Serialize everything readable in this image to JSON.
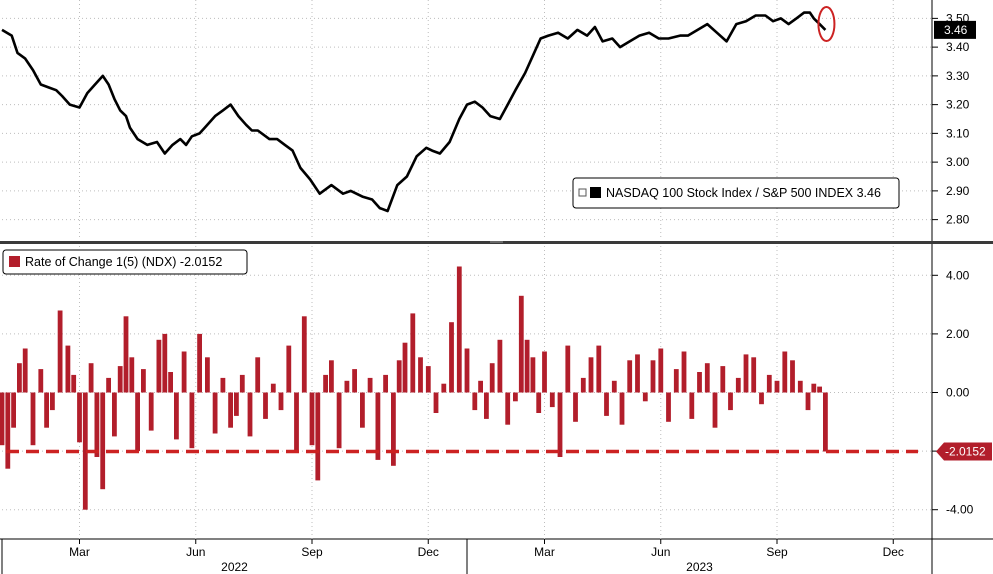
{
  "chart_data": [
    {
      "type": "line",
      "legend": "NASDAQ 100 Stock Index / S&P 500 INDEX 3.46",
      "last_value_label": "3.46",
      "ylim": [
        2.75,
        3.55
      ],
      "yticks": [
        2.8,
        2.9,
        3.0,
        3.1,
        3.2,
        3.3,
        3.4,
        3.5
      ],
      "ytick_labels": [
        "2.80",
        "2.90",
        "3.00",
        "3.10",
        "3.20",
        "3.30",
        "3.40",
        "3.50"
      ],
      "x_unit": "months since Jan 2022",
      "series": [
        {
          "color": "#000000",
          "x": [
            0.0,
            0.25,
            0.4,
            0.6,
            0.8,
            1.0,
            1.2,
            1.4,
            1.55,
            1.75,
            2.0,
            2.2,
            2.4,
            2.6,
            2.75,
            2.9,
            3.05,
            3.2,
            3.3,
            3.5,
            3.75,
            4.0,
            4.2,
            4.4,
            4.6,
            4.75,
            4.9,
            5.1,
            5.3,
            5.5,
            5.7,
            5.9,
            6.1,
            6.3,
            6.45,
            6.6,
            6.9,
            7.1,
            7.3,
            7.5,
            7.7,
            7.95,
            8.2,
            8.5,
            8.8,
            9.0,
            9.3,
            9.55,
            9.75,
            9.95,
            10.2,
            10.45,
            10.7,
            10.95,
            11.1,
            11.3,
            11.55,
            11.8,
            12.0,
            12.2,
            12.4,
            12.6,
            12.85,
            13.05,
            13.25,
            13.5,
            13.7,
            13.9,
            14.1,
            14.35,
            14.6,
            14.85,
            15.1,
            15.3,
            15.5,
            15.75,
            15.95,
            16.2,
            16.45,
            16.7,
            16.95,
            17.2,
            17.5,
            17.7,
            17.95,
            18.2,
            18.45,
            18.7,
            18.95,
            19.2,
            19.45,
            19.7,
            19.9,
            20.1,
            20.3,
            20.5,
            20.7,
            20.85,
            20.95,
            21.1,
            21.25
          ],
          "values": [
            3.46,
            3.44,
            3.38,
            3.36,
            3.32,
            3.27,
            3.26,
            3.25,
            3.23,
            3.2,
            3.19,
            3.24,
            3.27,
            3.3,
            3.27,
            3.22,
            3.18,
            3.16,
            3.12,
            3.08,
            3.06,
            3.07,
            3.03,
            3.06,
            3.08,
            3.06,
            3.09,
            3.1,
            3.13,
            3.16,
            3.18,
            3.2,
            3.16,
            3.13,
            3.11,
            3.11,
            3.08,
            3.08,
            3.06,
            3.04,
            2.98,
            2.94,
            2.89,
            2.92,
            2.89,
            2.9,
            2.88,
            2.87,
            2.84,
            2.83,
            2.92,
            2.95,
            3.02,
            3.05,
            3.04,
            3.03,
            3.07,
            3.15,
            3.2,
            3.21,
            3.19,
            3.16,
            3.15,
            3.2,
            3.25,
            3.31,
            3.37,
            3.43,
            3.44,
            3.45,
            3.43,
            3.46,
            3.44,
            3.47,
            3.42,
            3.43,
            3.4,
            3.42,
            3.44,
            3.45,
            3.43,
            3.43,
            3.44,
            3.44,
            3.46,
            3.48,
            3.45,
            3.42,
            3.48,
            3.49,
            3.51,
            3.51,
            3.49,
            3.5,
            3.48,
            3.5,
            3.52,
            3.52,
            3.5,
            3.48,
            3.46
          ]
        }
      ]
    },
    {
      "type": "bar",
      "legend": "Rate of Change 1(5) (NDX) -2.0152",
      "last_value_label": "-2.0152",
      "reference_line": {
        "value": -2.0152,
        "style": "dashed",
        "color": "#cc2222"
      },
      "ylim": [
        -5.0,
        5.0
      ],
      "yticks": [
        -4.0,
        -2.0,
        0.0,
        2.0,
        4.0
      ],
      "ytick_labels": [
        "-4.00",
        "-2.00",
        "0.00",
        "2.00",
        "4.00"
      ],
      "x_unit": "months since Jan 2022",
      "series": [
        {
          "color": "#b21e2b",
          "x": [
            0.0,
            0.15,
            0.3,
            0.45,
            0.6,
            0.8,
            1.0,
            1.15,
            1.3,
            1.5,
            1.7,
            1.85,
            2.0,
            2.15,
            2.3,
            2.45,
            2.6,
            2.75,
            2.9,
            3.05,
            3.2,
            3.35,
            3.5,
            3.65,
            3.85,
            4.05,
            4.2,
            4.35,
            4.5,
            4.7,
            4.9,
            5.1,
            5.3,
            5.5,
            5.7,
            5.9,
            6.05,
            6.2,
            6.4,
            6.6,
            6.8,
            7.0,
            7.2,
            7.4,
            7.6,
            7.8,
            8.0,
            8.15,
            8.35,
            8.5,
            8.7,
            8.9,
            9.1,
            9.3,
            9.5,
            9.7,
            9.9,
            10.1,
            10.25,
            10.4,
            10.6,
            10.8,
            11.0,
            11.2,
            11.4,
            11.6,
            11.8,
            12.0,
            12.2,
            12.35,
            12.5,
            12.65,
            12.85,
            13.05,
            13.25,
            13.4,
            13.55,
            13.7,
            13.85,
            14.0,
            14.2,
            14.4,
            14.6,
            14.8,
            15.0,
            15.2,
            15.4,
            15.6,
            15.8,
            16.0,
            16.2,
            16.4,
            16.6,
            16.8,
            17.0,
            17.2,
            17.4,
            17.6,
            17.8,
            18.0,
            18.2,
            18.4,
            18.6,
            18.8,
            19.0,
            19.2,
            19.4,
            19.6,
            19.8,
            20.0,
            20.2,
            20.4,
            20.6,
            20.8,
            20.95,
            21.1,
            21.25
          ],
          "values": [
            -1.8,
            -2.6,
            -1.2,
            1.0,
            1.5,
            -1.8,
            0.8,
            -1.2,
            -0.6,
            2.8,
            1.6,
            0.6,
            -1.7,
            -4.0,
            1.0,
            -2.2,
            -3.3,
            0.5,
            -1.5,
            0.9,
            2.6,
            1.2,
            -2.0,
            0.8,
            -1.3,
            1.8,
            2.0,
            0.7,
            -1.6,
            1.4,
            -1.9,
            2.0,
            1.2,
            -1.4,
            0.5,
            -1.2,
            -0.8,
            0.6,
            -1.5,
            1.2,
            -0.9,
            0.3,
            -0.6,
            1.6,
            -2.0,
            2.6,
            -1.8,
            -3.0,
            0.6,
            1.1,
            -1.9,
            0.4,
            0.8,
            -1.2,
            0.5,
            -2.3,
            0.6,
            -2.5,
            1.1,
            1.7,
            2.7,
            1.2,
            0.9,
            -0.7,
            0.3,
            2.4,
            4.3,
            1.5,
            -0.6,
            0.4,
            -0.9,
            1.0,
            1.8,
            -1.1,
            -0.3,
            3.3,
            1.8,
            1.2,
            -0.7,
            1.4,
            -0.5,
            -2.2,
            1.6,
            -1.0,
            0.5,
            1.2,
            1.6,
            -0.8,
            0.4,
            -1.1,
            1.1,
            1.3,
            -0.3,
            1.1,
            1.5,
            -1.0,
            0.8,
            1.4,
            -0.9,
            0.7,
            1.0,
            -1.2,
            0.9,
            -0.6,
            0.5,
            1.3,
            1.2,
            -0.4,
            0.6,
            0.4,
            1.4,
            1.1,
            0.4,
            -0.6,
            0.3,
            0.2,
            -2.0152
          ]
        }
      ]
    }
  ],
  "x_axis": {
    "month_ticks": [
      {
        "x": 2.0,
        "label": "Mar"
      },
      {
        "x": 5.0,
        "label": "Jun"
      },
      {
        "x": 8.0,
        "label": "Sep"
      },
      {
        "x": 11.0,
        "label": "Dec"
      },
      {
        "x": 14.0,
        "label": "Mar"
      },
      {
        "x": 17.0,
        "label": "Jun"
      },
      {
        "x": 20.0,
        "label": "Sep"
      },
      {
        "x": 23.0,
        "label": "Dec"
      }
    ],
    "year_labels": [
      {
        "x": 6.0,
        "label": "2022"
      },
      {
        "x": 18.0,
        "label": "2023"
      }
    ],
    "xlim": [
      0,
      24
    ]
  },
  "colors": {
    "line": "#000000",
    "bars": "#b21e2b",
    "reference": "#cc2222",
    "highlight_circle": "#cc2222",
    "grid": "#bdbdbd"
  }
}
